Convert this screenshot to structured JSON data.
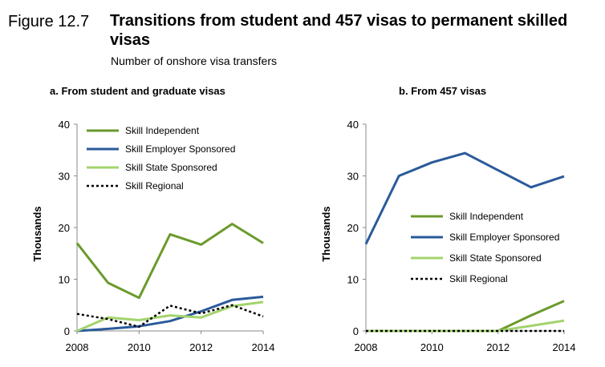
{
  "figure": {
    "label": "Figure 12.7",
    "title": "Transitions from student and 457 visas to permanent skilled visas",
    "subtitle": "Number of onshore visa transfers"
  },
  "colors": {
    "skill_independent": "#6b9a2c",
    "skill_employer_sponsored": "#2a5a9a",
    "skill_state_sponsored": "#a3d36e",
    "skill_regional": "#000000"
  },
  "chart_data": [
    {
      "type": "line",
      "title": "a. From student and graduate visas",
      "ylabel": "Thousands",
      "xlabel": "",
      "x": [
        2008,
        2009,
        2010,
        2011,
        2012,
        2013,
        2014
      ],
      "xticks": [
        "2008",
        "2010",
        "2012",
        "2014"
      ],
      "yticks": [
        "0",
        "10",
        "20",
        "30",
        "40"
      ],
      "xlim": [
        2008,
        2014
      ],
      "ylim": [
        0,
        40
      ],
      "grid": false,
      "legend": "top-left",
      "series": [
        {
          "name": "Skill Independent",
          "values": [
            17,
            9.3,
            6.4,
            18.7,
            16.7,
            20.7,
            17
          ],
          "style": "solid",
          "color": "#6b9a2c"
        },
        {
          "name": "Skill Employer Sponsored",
          "values": [
            0,
            0.4,
            0.9,
            1.9,
            3.8,
            6,
            6.6
          ],
          "style": "solid",
          "color": "#2a5a9a"
        },
        {
          "name": "Skill State Sponsored",
          "values": [
            0,
            2.6,
            2.1,
            3,
            2.6,
            4.8,
            5.6
          ],
          "style": "solid",
          "color": "#a3d36e"
        },
        {
          "name": "Skill Regional",
          "values": [
            3.3,
            2.3,
            0.8,
            4.9,
            3.4,
            5,
            2.8
          ],
          "style": "dotted",
          "color": "#000000"
        }
      ]
    },
    {
      "type": "line",
      "title": "b. From 457 visas",
      "ylabel": "Thousands",
      "xlabel": "",
      "x": [
        2008,
        2009,
        2010,
        2011,
        2012,
        2013,
        2014
      ],
      "xticks": [
        "2008",
        "2010",
        "2012",
        "2014"
      ],
      "yticks": [
        "0",
        "10",
        "20",
        "30",
        "40"
      ],
      "xlim": [
        2008,
        2014
      ],
      "ylim": [
        0,
        40
      ],
      "grid": false,
      "legend": "center-left",
      "series": [
        {
          "name": "Skill Independent",
          "values": [
            0,
            0,
            0,
            0,
            0,
            3,
            5.8
          ],
          "style": "solid",
          "color": "#6b9a2c"
        },
        {
          "name": "Skill Employer Sponsored",
          "values": [
            16.8,
            30,
            32.6,
            34.4,
            31.1,
            27.8,
            29.9
          ],
          "style": "solid",
          "color": "#2a5a9a"
        },
        {
          "name": "Skill State Sponsored",
          "values": [
            0,
            0,
            0,
            0,
            0,
            1,
            2
          ],
          "style": "solid",
          "color": "#a3d36e"
        },
        {
          "name": "Skill Regional",
          "values": [
            0,
            0,
            0,
            0,
            0,
            0,
            0
          ],
          "style": "dotted",
          "color": "#000000"
        }
      ]
    }
  ]
}
